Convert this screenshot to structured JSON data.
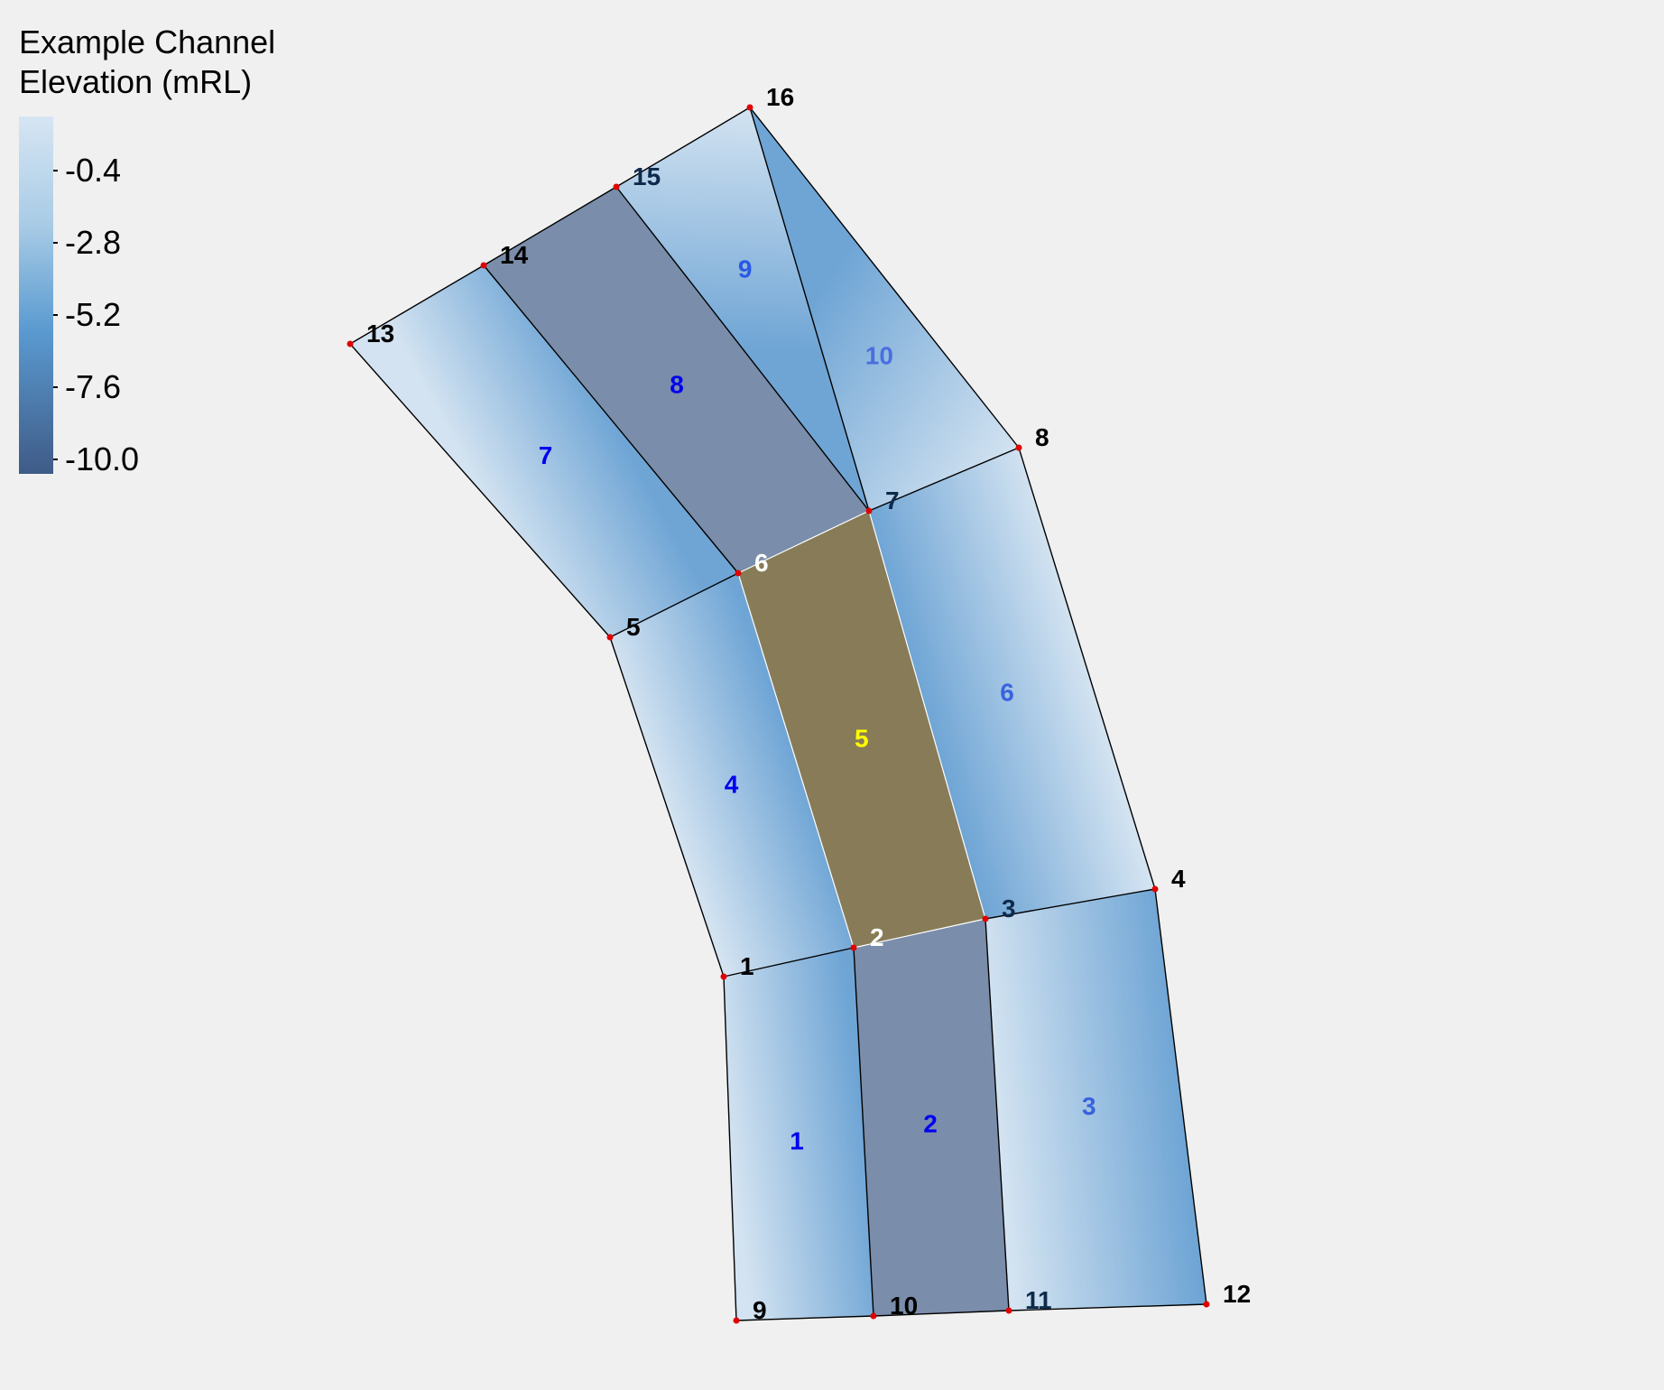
{
  "legend": {
    "title_line1": "Example Channel",
    "title_line2": "Elevation (mRL)",
    "ticks": [
      "-0.4",
      "-2.8",
      "-5.2",
      "-7.6",
      "-10.0"
    ],
    "colors": {
      "high": "#d6e5f3",
      "mid": "#5a9ad0",
      "low": "#3f5b87"
    }
  },
  "mesh": {
    "colors": {
      "light": "#d3e3f1",
      "medium": "#6fa5d5",
      "deep": "#7a8daa",
      "selected": "#877c57",
      "edge": "#000000",
      "node_marker": "#e00000"
    },
    "nodes": [
      {
        "label": "1",
        "label_color": "#000000"
      },
      {
        "label": "2",
        "label_color": "#ffffff"
      },
      {
        "label": "3",
        "label_color": "#0e2a4a"
      },
      {
        "label": "4",
        "label_color": "#000000"
      },
      {
        "label": "5",
        "label_color": "#000000"
      },
      {
        "label": "6",
        "label_color": "#ffffff"
      },
      {
        "label": "7",
        "label_color": "#0e2a4a"
      },
      {
        "label": "8",
        "label_color": "#000000"
      },
      {
        "label": "9",
        "label_color": "#000000"
      },
      {
        "label": "10",
        "label_color": "#000000"
      },
      {
        "label": "11",
        "label_color": "#0e2a4a"
      },
      {
        "label": "12",
        "label_color": "#000000"
      },
      {
        "label": "13",
        "label_color": "#000000"
      },
      {
        "label": "14",
        "label_color": "#000000"
      },
      {
        "label": "15",
        "label_color": "#0e2a4a"
      },
      {
        "label": "16",
        "label_color": "#000000"
      }
    ],
    "elements": [
      {
        "label": "1",
        "label_color": "#0000ee"
      },
      {
        "label": "2",
        "label_color": "#0000ee"
      },
      {
        "label": "3",
        "label_color": "#3a62dd"
      },
      {
        "label": "4",
        "label_color": "#0000ee"
      },
      {
        "label": "5",
        "label_color": "#ffff00",
        "selected": true
      },
      {
        "label": "6",
        "label_color": "#3a62dd"
      },
      {
        "label": "7",
        "label_color": "#0000ee"
      },
      {
        "label": "8",
        "label_color": "#0000ee"
      },
      {
        "label": "9",
        "label_color": "#2a58e6"
      },
      {
        "label": "10",
        "label_color": "#4a6ee0"
      }
    ]
  }
}
